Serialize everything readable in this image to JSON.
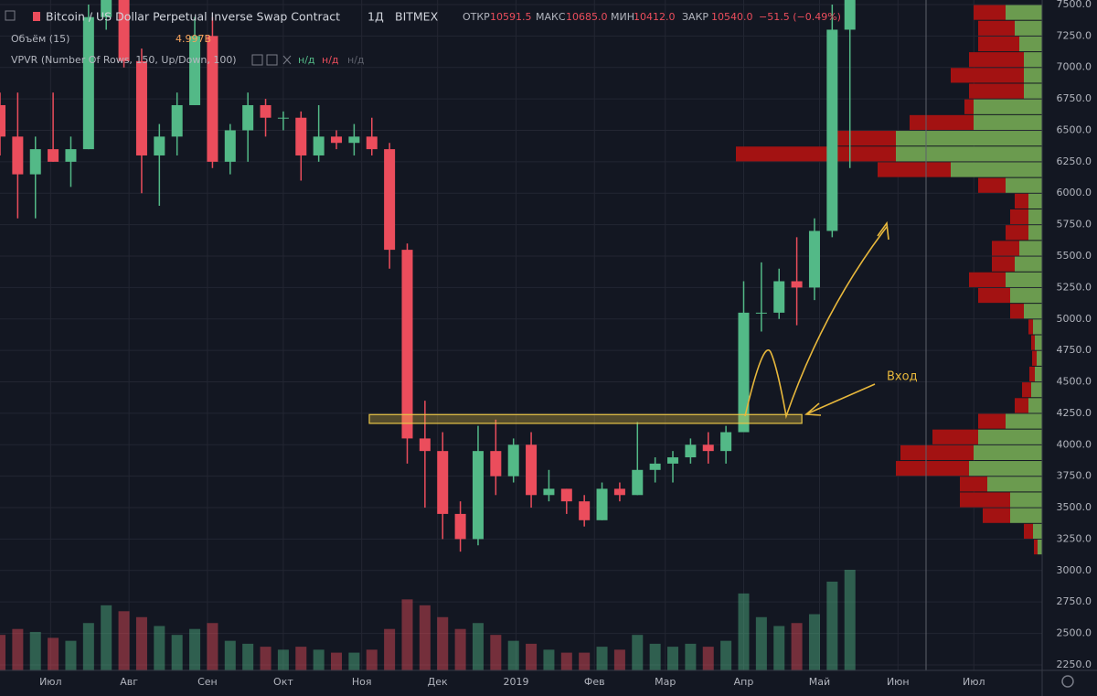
{
  "header": {
    "symbol": "Bitcoin / US Dollar Perpetual Inverse Swap Contract",
    "interval": "1Д",
    "exchange": "BITMEX",
    "open_label": "ОТКР",
    "open": "10591.5",
    "high_label": "МАКС",
    "high": "10685.0",
    "low_label": "МИН",
    "low": "10412.0",
    "close_label": "ЗАКР",
    "close": "10540.0",
    "change": "−51.5 (−0.49%)",
    "volume_study": "Объём (15)",
    "volume_value": "4.997B",
    "vpvr_study": "VPVR (Number Of Rows, 150, Up/Down, 100)",
    "vpvr_values": [
      "н/д",
      "н/д",
      "н/д"
    ]
  },
  "chart_data": {
    "type": "candlestick",
    "annotation": "Вход",
    "up_color": "#53b987",
    "down_color": "#eb4d5c",
    "grid": true,
    "xlim": [
      -20,
      392
    ],
    "xticks": [
      {
        "value": 0,
        "label": "Июл"
      },
      {
        "value": 31,
        "label": "Авг"
      },
      {
        "value": 62,
        "label": "Сен"
      },
      {
        "value": 92,
        "label": "Окт"
      },
      {
        "value": 123,
        "label": "Ноя"
      },
      {
        "value": 153,
        "label": "Дек"
      },
      {
        "value": 184,
        "label": "2019"
      },
      {
        "value": 215,
        "label": "Фев"
      },
      {
        "value": 243,
        "label": "Мар"
      },
      {
        "value": 274,
        "label": "Апр"
      },
      {
        "value": 304,
        "label": "Май"
      },
      {
        "value": 335,
        "label": "Июн"
      },
      {
        "value": 365,
        "label": "Июл"
      }
    ],
    "ylim": [
      2206,
      7536
    ],
    "yticks": [
      {
        "value": 2250,
        "label": "2250.0"
      },
      {
        "value": 2500,
        "label": "2500.0"
      },
      {
        "value": 2750,
        "label": "2750.0"
      },
      {
        "value": 3000,
        "label": "3000.0"
      },
      {
        "value": 3250,
        "label": "3250.0"
      },
      {
        "value": 3500,
        "label": "3500.0"
      },
      {
        "value": 3750,
        "label": "3750.0"
      },
      {
        "value": 4000,
        "label": "4000.0"
      },
      {
        "value": 4250,
        "label": "4250.0"
      },
      {
        "value": 4500,
        "label": "4500.0"
      },
      {
        "value": 4750,
        "label": "4750.0"
      },
      {
        "value": 5000,
        "label": "5000.0"
      },
      {
        "value": 5250,
        "label": "5250.0"
      },
      {
        "value": 5500,
        "label": "5500.0"
      },
      {
        "value": 5750,
        "label": "5750.0"
      },
      {
        "value": 6000,
        "label": "6000.0"
      },
      {
        "value": 6250,
        "label": "6250.0"
      },
      {
        "value": 6500,
        "label": "6500.0"
      },
      {
        "value": 6750,
        "label": "6750.0"
      },
      {
        "value": 7000,
        "label": "7000.0"
      },
      {
        "value": 7250,
        "label": "7250.0"
      },
      {
        "value": 7500,
        "label": "7500.0"
      }
    ],
    "x": [
      -20,
      -13,
      -6,
      1,
      8,
      15,
      22,
      29,
      36,
      43,
      50,
      57,
      64,
      71,
      78,
      85,
      92,
      99,
      106,
      113,
      120,
      127,
      134,
      141,
      148,
      155,
      162,
      169,
      176,
      183,
      190,
      197,
      204,
      211,
      218,
      225,
      232,
      239,
      246,
      253,
      260,
      267,
      274,
      281,
      288,
      295,
      302,
      309,
      316
    ],
    "open": [
      6700,
      6450,
      6150,
      6350,
      6250,
      6350,
      7400,
      8200,
      7050,
      6300,
      6450,
      6700,
      7250,
      6250,
      6500,
      6700,
      6600,
      6600,
      6300,
      6450,
      6400,
      6450,
      6350,
      5550,
      4050,
      3950,
      3450,
      3250,
      3950,
      3750,
      4000,
      3600,
      3650,
      3550,
      3400,
      3650,
      3600,
      3800,
      3850,
      3900,
      4000,
      3950,
      4100,
      5050,
      5050,
      5300,
      5250,
      5700,
      7300
    ],
    "high": [
      6800,
      6800,
      6450,
      6800,
      6450,
      7500,
      8450,
      8250,
      7150,
      6550,
      6800,
      7400,
      7400,
      6550,
      6800,
      6750,
      6650,
      6650,
      6700,
      6500,
      6550,
      6600,
      6400,
      5600,
      4350,
      4100,
      3550,
      4150,
      4200,
      4050,
      4100,
      3800,
      3650,
      3600,
      3700,
      3700,
      4180,
      3900,
      3950,
      4050,
      4100,
      4150,
      5300,
      5450,
      5400,
      5650,
      5800,
      7500,
      8300
    ],
    "low": [
      6300,
      5800,
      5800,
      6250,
      6050,
      6350,
      7300,
      7000,
      6000,
      5900,
      6300,
      6700,
      6200,
      6150,
      6250,
      6450,
      6500,
      6100,
      6250,
      6350,
      6300,
      6300,
      5400,
      3850,
      3500,
      3250,
      3150,
      3200,
      3600,
      3700,
      3500,
      3550,
      3450,
      3350,
      3400,
      3550,
      3600,
      3700,
      3700,
      3850,
      3850,
      3850,
      4100,
      4900,
      5000,
      4950,
      5150,
      5650,
      6200
    ],
    "close": [
      6450,
      6150,
      6350,
      6250,
      6350,
      7400,
      8200,
      7050,
      6300,
      6450,
      6700,
      7250,
      6250,
      6500,
      6700,
      6600,
      6600,
      6300,
      6450,
      6400,
      6450,
      6350,
      5550,
      4050,
      3950,
      3450,
      3250,
      3950,
      3750,
      4000,
      3600,
      3650,
      3550,
      3400,
      3650,
      3600,
      3800,
      3850,
      3900,
      4000,
      3950,
      4100,
      5050,
      5050,
      5300,
      5250,
      5700,
      7300,
      7900
    ],
    "volume": [
      12,
      14,
      13,
      11,
      10,
      16,
      22,
      20,
      18,
      15,
      12,
      14,
      16,
      10,
      9,
      8,
      7,
      8,
      7,
      6,
      6,
      7,
      14,
      24,
      22,
      18,
      14,
      16,
      12,
      10,
      9,
      7,
      6,
      6,
      8,
      7,
      12,
      9,
      8,
      9,
      8,
      10,
      26,
      18,
      15,
      16,
      19,
      30,
      34
    ],
    "profile": {
      "price": [
        7437,
        7312,
        7187,
        7062,
        6937,
        6812,
        6687,
        6562,
        6437,
        6312,
        6187,
        6062,
        5937,
        5812,
        5687,
        5562,
        5437,
        5312,
        5187,
        5062,
        4937,
        4812,
        4687,
        4562,
        4437,
        4312,
        4187,
        4062,
        3937,
        3812,
        3687,
        3562,
        3437,
        3312,
        3187
      ],
      "up": [
        40,
        30,
        25,
        20,
        20,
        20,
        75,
        75,
        160,
        160,
        100,
        40,
        15,
        15,
        15,
        25,
        30,
        40,
        35,
        20,
        10,
        8,
        6,
        8,
        12,
        15,
        40,
        70,
        75,
        80,
        60,
        35,
        35,
        10,
        5
      ],
      "down": [
        35,
        40,
        45,
        60,
        80,
        60,
        10,
        70,
        75,
        175,
        80,
        30,
        15,
        20,
        25,
        30,
        25,
        40,
        35,
        15,
        5,
        4,
        5,
        6,
        10,
        15,
        30,
        50,
        80,
        80,
        30,
        55,
        30,
        10,
        4
      ],
      "up_color": "#6b9b4f",
      "down_color": "#a31212"
    },
    "zone": {
      "x": [
        126,
        297
      ],
      "y": [
        4170,
        4240
      ],
      "color": "#e8c547"
    }
  }
}
